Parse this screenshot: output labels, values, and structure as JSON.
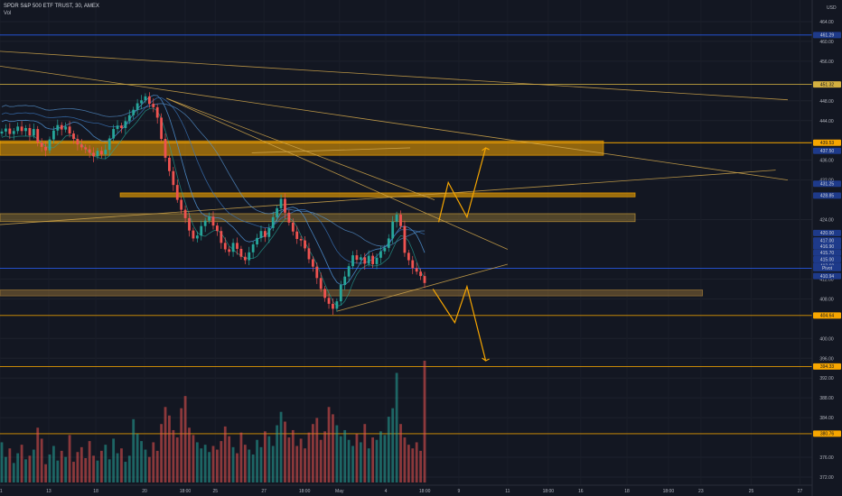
{
  "header": {
    "symbol_line": "SPDR S&P 500 ETF TRUST, 30, AMEX",
    "sub_line": "Vol"
  },
  "chart_data": {
    "type": "candlestick",
    "currency_label": "USD",
    "y_ticks": [
      464.0,
      460.0,
      456.0,
      448.0,
      444.0,
      436.0,
      432.0,
      424.0,
      412.0,
      408.0,
      400.0,
      396.0,
      392.0,
      388.0,
      384.0,
      376.0,
      372.0
    ],
    "ylim": [
      370,
      468
    ],
    "x_ticks": [
      {
        "label": "11",
        "t": 0.0
      },
      {
        "label": "13",
        "t": 0.06
      },
      {
        "label": "18",
        "t": 0.118
      },
      {
        "label": "20",
        "t": 0.178
      },
      {
        "label": "18:00",
        "t": 0.228
      },
      {
        "label": "25",
        "t": 0.265
      },
      {
        "label": "27",
        "t": 0.325
      },
      {
        "label": "18:00",
        "t": 0.375
      },
      {
        "label": "May",
        "t": 0.418
      },
      {
        "label": "4",
        "t": 0.475
      },
      {
        "label": "18:00",
        "t": 0.523
      },
      {
        "label": "9",
        "t": 0.565
      },
      {
        "label": "11",
        "t": 0.625
      },
      {
        "label": "18:00",
        "t": 0.675
      },
      {
        "label": "16",
        "t": 0.715
      },
      {
        "label": "18",
        "t": 0.772
      },
      {
        "label": "18:00",
        "t": 0.823
      },
      {
        "label": "23",
        "t": 0.863
      },
      {
        "label": "25",
        "t": 0.925
      },
      {
        "label": "27",
        "t": 0.985
      }
    ],
    "price_tags": [
      {
        "label": "461.29",
        "price": 461.29,
        "color": "#2962ff"
      },
      {
        "label": "451.32",
        "price": 451.32,
        "color": "#d4b040"
      },
      {
        "label": "439.53",
        "price": 439.53,
        "color": "#f7a600"
      },
      {
        "label": "437.50",
        "price": 437.9,
        "color": "#f7a600"
      },
      {
        "label": "431.25",
        "price": 431.25,
        "color": "#2962ff"
      },
      {
        "label": "428.85",
        "price": 428.85,
        "color": "#2962ff"
      },
      {
        "label": "420.00",
        "price": 421.3,
        "color": "#2962ff"
      },
      {
        "label": "417.00",
        "price": 419.8,
        "color": "#2962ff"
      },
      {
        "label": "416.90",
        "price": 418.6,
        "color": "#2962ff"
      },
      {
        "label": "415.70",
        "price": 417.3,
        "color": "#2962ff"
      },
      {
        "label": "415.00",
        "price": 416.0,
        "color": "#2962ff"
      },
      {
        "label": "413.60",
        "price": 414.7,
        "color": "#2962ff"
      },
      {
        "label": "Pivot",
        "price": 414.2,
        "color": "#2962ff"
      },
      {
        "label": "410.94",
        "price": 412.6,
        "color": "#2962ff"
      },
      {
        "label": "404.64",
        "price": 404.64,
        "color": "#f7a600"
      },
      {
        "label": "394.33",
        "price": 394.33,
        "color": "#f7a600"
      },
      {
        "label": "380.76",
        "price": 380.76,
        "color": "#f7a600"
      }
    ],
    "zones": [
      {
        "price_top": 439.9,
        "price_bottom": 437.0,
        "t_start": 0.0,
        "t_end": 0.743,
        "color": "#f7a600",
        "opacity": 0.55
      },
      {
        "price_top": 429.4,
        "price_bottom": 428.6,
        "t_start": 0.148,
        "t_end": 0.782,
        "color": "#f7a600",
        "opacity": 0.6
      },
      {
        "price_top": 425.2,
        "price_bottom": 423.6,
        "t_start": 0.0,
        "t_end": 0.782,
        "color": "#c79a3a",
        "opacity": 0.35
      },
      {
        "price_top": 409.8,
        "price_bottom": 408.6,
        "t_start": 0.0,
        "t_end": 0.865,
        "color": "#a27a3a",
        "opacity": 0.45
      }
    ],
    "price_series": [
      441.8,
      442.4,
      441.3,
      441.9,
      442.8,
      441.9,
      442.5,
      441.0,
      442.3,
      439.6,
      438.7,
      438.0,
      440.2,
      442.0,
      443.1,
      442.2,
      442.8,
      441.4,
      440.3,
      439.2,
      438.6,
      438.2,
      437.5,
      436.8,
      437.9,
      437.2,
      438.1,
      440.4,
      442.3,
      443.0,
      442.5,
      443.9,
      445.1,
      446.2,
      447.5,
      448.1,
      448.9,
      447.4,
      446.7,
      444.6,
      440.3,
      436.5,
      433.8,
      431.0,
      428.0,
      426.0,
      424.3,
      421.8,
      420.2,
      420.8,
      422.7,
      423.8,
      424.6,
      422.8,
      421.7,
      419.3,
      418.0,
      417.5,
      419.3,
      418.1,
      416.5,
      415.8,
      417.4,
      419.0,
      420.3,
      421.7,
      420.5,
      422.3,
      424.5,
      426.3,
      428.2,
      425.4,
      423.4,
      421.6,
      420.1,
      419.8,
      418.2,
      416.0,
      414.5,
      412.2,
      410.0,
      408.2,
      407.0,
      406.0,
      407.5,
      410.8,
      412.5,
      414.6,
      416.8,
      415.9,
      416.4,
      415.1,
      416.7,
      415.0,
      416.3,
      417.6,
      418.3,
      420.2,
      423.6,
      425.0,
      422.7,
      417.3,
      415.8,
      414.2,
      413.5,
      412.6,
      411.2
    ],
    "volume_series": [
      0.33,
      0.21,
      0.28,
      0.16,
      0.24,
      0.31,
      0.19,
      0.22,
      0.27,
      0.45,
      0.36,
      0.15,
      0.23,
      0.3,
      0.18,
      0.26,
      0.21,
      0.39,
      0.17,
      0.25,
      0.29,
      0.2,
      0.34,
      0.22,
      0.18,
      0.26,
      0.31,
      0.19,
      0.36,
      0.24,
      0.28,
      0.17,
      0.22,
      0.52,
      0.4,
      0.34,
      0.27,
      0.21,
      0.33,
      0.26,
      0.48,
      0.62,
      0.55,
      0.43,
      0.37,
      0.61,
      0.71,
      0.45,
      0.39,
      0.33,
      0.28,
      0.31,
      0.25,
      0.3,
      0.27,
      0.34,
      0.46,
      0.38,
      0.29,
      0.24,
      0.41,
      0.31,
      0.27,
      0.23,
      0.35,
      0.29,
      0.42,
      0.38,
      0.3,
      0.47,
      0.58,
      0.5,
      0.37,
      0.43,
      0.3,
      0.36,
      0.28,
      0.41,
      0.48,
      0.53,
      0.35,
      0.42,
      0.62,
      0.56,
      0.47,
      0.38,
      0.43,
      0.35,
      0.3,
      0.4,
      0.33,
      0.48,
      0.28,
      0.37,
      0.35,
      0.42,
      0.39,
      0.54,
      0.61,
      0.9,
      0.48,
      0.37,
      0.31,
      0.28,
      0.33,
      0.26,
      1.0
    ]
  },
  "colors": {
    "background": "#131722",
    "up": "#26a69a",
    "down": "#ef5350",
    "annotation": "#f7a600",
    "trendline": "#d4a84b",
    "blue_line": "#2962ff",
    "ma_line": "#4e8fcf"
  }
}
